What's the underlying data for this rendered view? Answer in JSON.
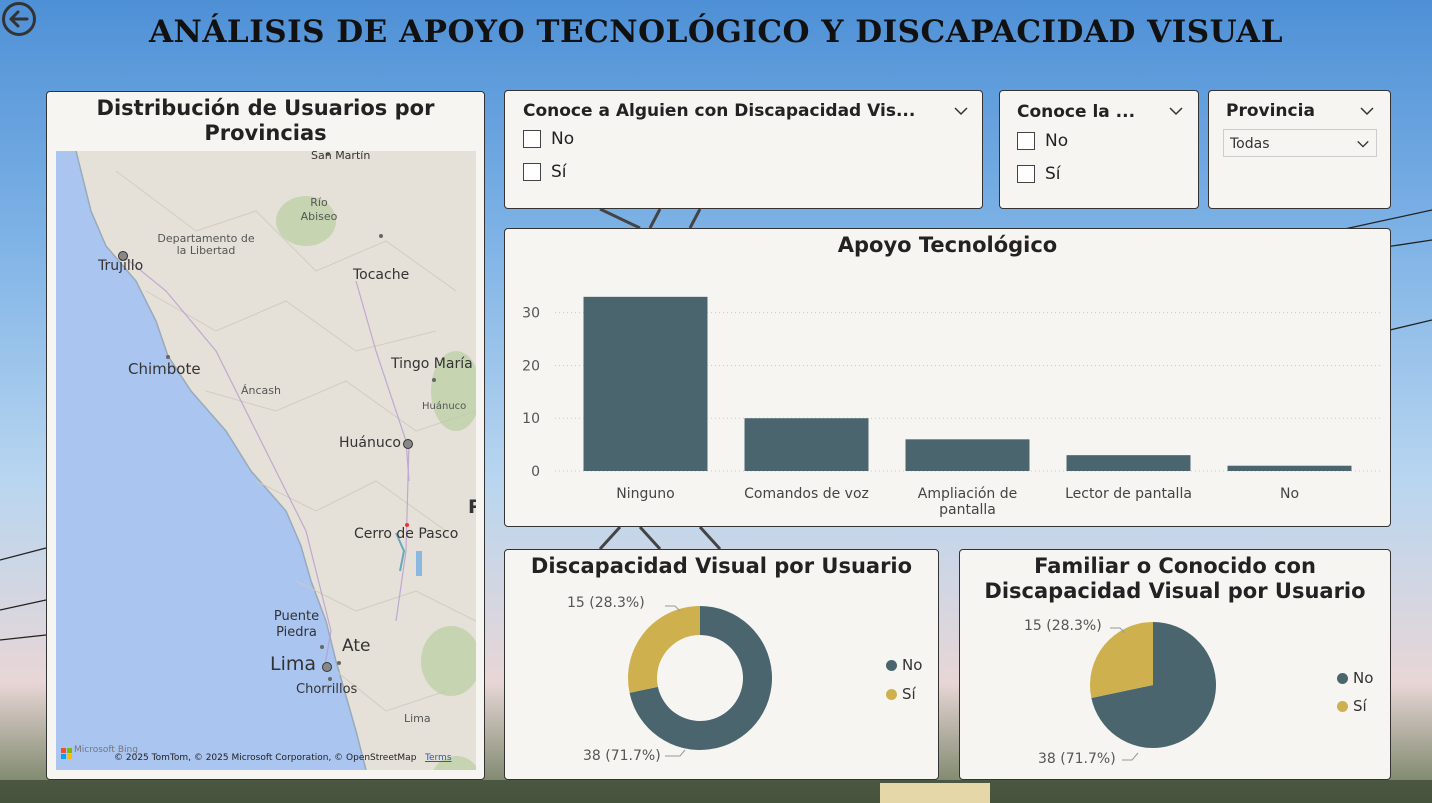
{
  "page": {
    "title": "ANÁLISIS DE APOYO TECNOLÓGICO Y DISCAPACIDAD VISUAL"
  },
  "colors": {
    "dark": "#4a656d",
    "gold": "#cfb04e",
    "panel_bg": "#f6f5f1"
  },
  "map": {
    "title": "Distribución de Usuarios por Provincias",
    "places": [
      "San Martín",
      "Río Abiseo",
      "Departamento de la Libertad",
      "Trujillo",
      "Tocache",
      "Chimbote",
      "Tingo María",
      "Áncash",
      "Huánuco",
      "Huánuco",
      "Cerro de Pasco",
      "Puente Piedra",
      "Ate",
      "Lima",
      "Chorrillos",
      "Lima",
      "P"
    ],
    "logo": "Microsoft Bing",
    "credit": "© 2025 TomTom, © 2025 Microsoft Corporation, © OpenStreetMap",
    "terms": "Terms"
  },
  "slicer_alguien": {
    "title": "Conoce a Alguien con Discapacidad Vis...",
    "options": [
      "No",
      "Sí"
    ]
  },
  "slicer_conoce_la": {
    "title": "Conoce la ...",
    "options": [
      "No",
      "Sí"
    ]
  },
  "slicer_provincia": {
    "title": "Provincia",
    "selected": "Todas"
  },
  "chart_data": [
    {
      "type": "bar",
      "title": "Apoyo Tecnológico",
      "categories": [
        "Ninguno",
        "Comandos de voz",
        "Ampliación de pantalla",
        "Lector de pantalla",
        "No"
      ],
      "values": [
        33,
        10,
        6,
        3,
        1
      ],
      "yticks": [
        0,
        10,
        20,
        30
      ],
      "ylim": [
        0,
        36
      ],
      "grid": true,
      "color": "#4a656d"
    },
    {
      "type": "pie",
      "title": "Discapacidad Visual por Usuario",
      "donut": true,
      "labels": [
        "No",
        "Sí"
      ],
      "values": [
        38,
        15
      ],
      "data_labels": [
        "38 (71.7%)",
        "15 (28.3%)"
      ],
      "colors": [
        "#4a656d",
        "#cfb04e"
      ],
      "legend": "right"
    },
    {
      "type": "pie",
      "title": "Familiar o Conocido con Discapacidad Visual por Usuario",
      "donut": false,
      "labels": [
        "No",
        "Sí"
      ],
      "values": [
        38,
        15
      ],
      "data_labels": [
        "38 (71.7%)",
        "15 (28.3%)"
      ],
      "colors": [
        "#4a656d",
        "#cfb04e"
      ],
      "legend": "right"
    }
  ]
}
